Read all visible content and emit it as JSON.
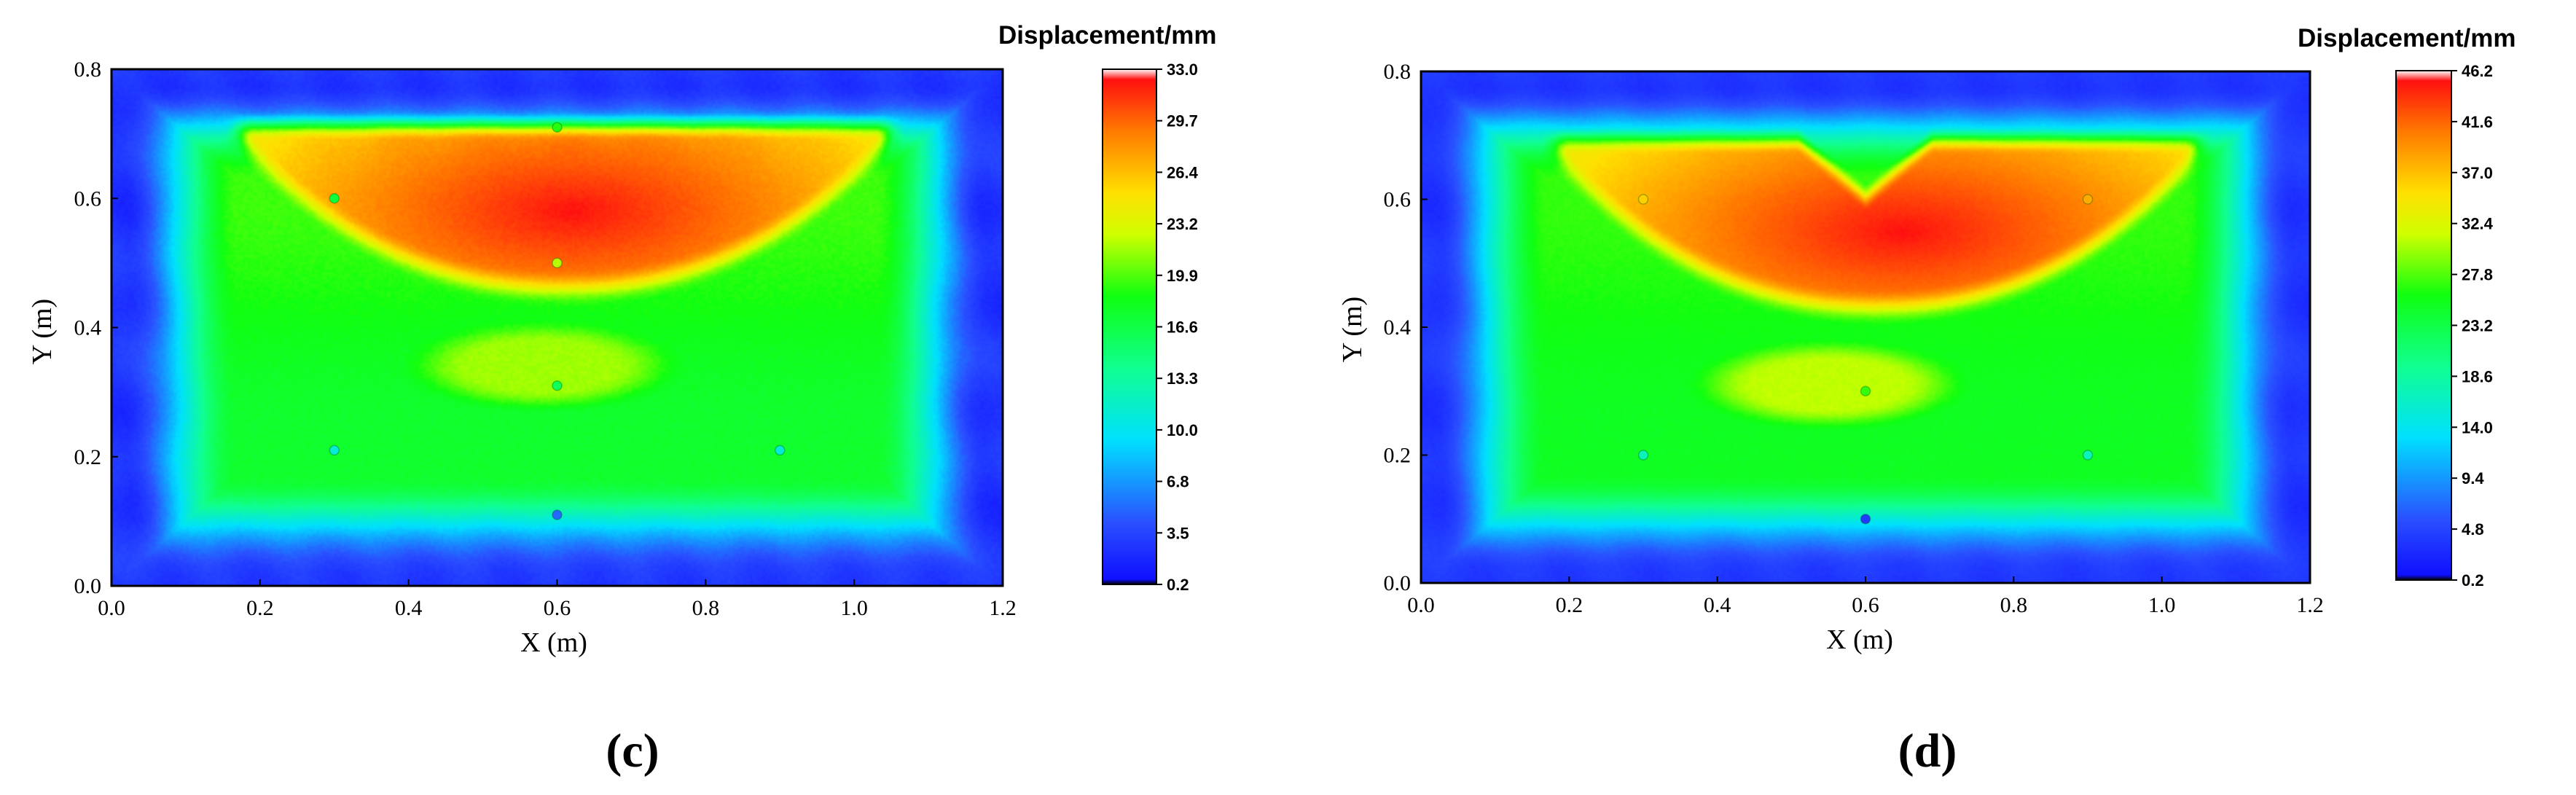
{
  "chart_data": [
    {
      "type": "heatmap",
      "panel_label": "(c)",
      "xlabel": "X (m)",
      "ylabel": "Y (m)",
      "xlim": [
        0.0,
        1.2
      ],
      "ylim": [
        0.0,
        0.8
      ],
      "x_ticks": [
        "0.0",
        "0.2",
        "0.4",
        "0.6",
        "0.8",
        "1.0",
        "1.2"
      ],
      "y_ticks": [
        "0.0",
        "0.2",
        "0.4",
        "0.6",
        "0.8"
      ],
      "colorbar": {
        "title": "Displacement/mm",
        "range": [
          0.2,
          33.0
        ],
        "ticks": [
          "0.2",
          "3.5",
          "6.8",
          "10.0",
          "13.3",
          "16.6",
          "19.9",
          "23.2",
          "26.4",
          "29.7",
          "33.0"
        ]
      },
      "field": {
        "shape": "bowl",
        "edge_value": 2.5,
        "plateau_value": 17.5,
        "upper_zone": {
          "x_range": [
            0.17,
            1.05
          ],
          "y_top": 0.71,
          "y_bottom_center": 0.46,
          "edge_value": 24.0,
          "peak_value": 33.0,
          "peak_at": [
            0.62,
            0.58
          ]
        },
        "mid_blob": {
          "center": [
            0.58,
            0.34
          ],
          "value": 21.5
        }
      },
      "markers": [
        {
          "x": 0.6,
          "y": 0.71,
          "value": 19.0
        },
        {
          "x": 0.3,
          "y": 0.6,
          "value": 17.0
        },
        {
          "x": 0.6,
          "y": 0.5,
          "value": 22.0
        },
        {
          "x": 0.6,
          "y": 0.31,
          "value": 16.0
        },
        {
          "x": 0.3,
          "y": 0.21,
          "value": 11.0
        },
        {
          "x": 0.9,
          "y": 0.21,
          "value": 11.0
        },
        {
          "x": 0.6,
          "y": 0.11,
          "value": 5.0
        }
      ]
    },
    {
      "type": "heatmap",
      "panel_label": "(d)",
      "xlabel": "X (m)",
      "ylabel": "Y (m)",
      "xlim": [
        0.0,
        1.2
      ],
      "ylim": [
        0.0,
        0.8
      ],
      "x_ticks": [
        "0.0",
        "0.2",
        "0.4",
        "0.6",
        "0.8",
        "1.0",
        "1.2"
      ],
      "y_ticks": [
        "0.0",
        "0.2",
        "0.4",
        "0.6",
        "0.8"
      ],
      "colorbar": {
        "title": "Displacement/mm",
        "range": [
          0.2,
          46.2
        ],
        "ticks": [
          "0.2",
          "4.8",
          "9.4",
          "14.0",
          "18.6",
          "23.2",
          "27.8",
          "32.4",
          "37.0",
          "41.6",
          "46.2"
        ]
      },
      "field": {
        "shape": "wings",
        "edge_value": 3.5,
        "plateau_value": 25.0,
        "upper_zone": {
          "x_range": [
            0.18,
            1.05
          ],
          "y_top": 0.69,
          "y_bottom_center": 0.43,
          "notch_at": [
            0.6,
            0.6
          ],
          "edge_value": 34.0,
          "peak_value": 46.2,
          "peak_at": [
            0.65,
            0.55
          ]
        },
        "mid_blob": {
          "center": [
            0.55,
            0.31
          ],
          "value": 31.0
        }
      },
      "markers": [
        {
          "x": 0.3,
          "y": 0.6,
          "value": 36.0
        },
        {
          "x": 0.9,
          "y": 0.6,
          "value": 38.0
        },
        {
          "x": 0.6,
          "y": 0.3,
          "value": 27.0
        },
        {
          "x": 0.3,
          "y": 0.2,
          "value": 17.0
        },
        {
          "x": 0.9,
          "y": 0.2,
          "value": 17.0
        },
        {
          "x": 0.6,
          "y": 0.1,
          "value": 4.0
        }
      ]
    }
  ]
}
